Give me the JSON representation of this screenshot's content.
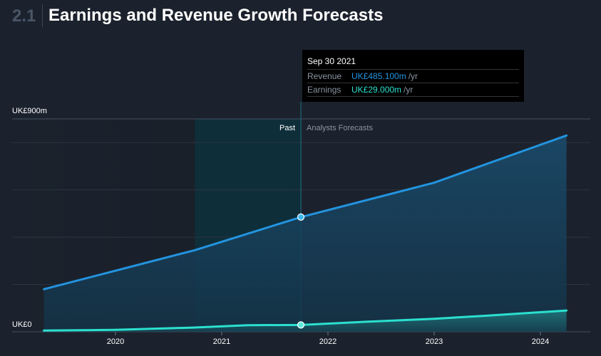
{
  "header": {
    "section_number": "2.1",
    "title": "Earnings and Revenue Growth Forecasts"
  },
  "tooltip": {
    "date": "Sep 30 2021",
    "revenue_label": "Revenue",
    "revenue_value": "UK£485.100m",
    "earnings_label": "Earnings",
    "earnings_value": "UK£29.000m",
    "unit": "/yr"
  },
  "colors": {
    "background": "#1b222d",
    "revenue": "#2394df",
    "earnings": "#2be0cf",
    "past_band": "#0b3440"
  },
  "chart_data": {
    "type": "area",
    "y_axis_top_label": "UK£900m",
    "y_axis_bottom_label": "UK£0",
    "ylim": [
      0,
      900
    ],
    "x_ticks": [
      "2020",
      "2021",
      "2022",
      "2023",
      "2024"
    ],
    "past_label": "Past",
    "forecast_label": "Analysts Forecasts",
    "past_end": "2021-09-30",
    "past_band_start": "2020-10-01",
    "grid": true,
    "series": [
      {
        "name": "Revenue",
        "x": [
          "2019-04-30",
          "2020-09-30",
          "2021-09-30",
          "2022-12-31",
          "2024-03-31"
        ],
        "values": [
          180,
          345,
          485,
          630,
          830
        ]
      },
      {
        "name": "Earnings",
        "x": [
          "2019-04-30",
          "2019-12-31",
          "2020-09-30",
          "2021-03-31",
          "2021-09-30",
          "2022-03-31",
          "2022-12-31",
          "2023-06-30",
          "2024-03-31"
        ],
        "values": [
          5,
          8,
          18,
          28,
          29,
          40,
          55,
          68,
          90
        ]
      }
    ]
  }
}
